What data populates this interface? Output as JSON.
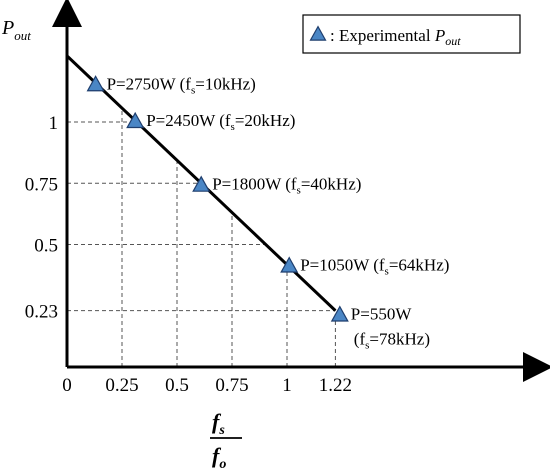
{
  "chart_data": {
    "type": "line",
    "ylabel": {
      "base": "P",
      "sub": "out"
    },
    "xlabel": {
      "num_base": "f",
      "num_sub": "s",
      "den_base": "f",
      "den_sub": "o"
    },
    "x_ticks": [
      {
        "value": 0,
        "label": "0"
      },
      {
        "value": 0.25,
        "label": "0.25"
      },
      {
        "value": 0.5,
        "label": "0.5"
      },
      {
        "value": 0.75,
        "label": "0.75"
      },
      {
        "value": 1,
        "label": "1"
      },
      {
        "value": 1.22,
        "label": "1.22"
      }
    ],
    "y_ticks": [
      {
        "value": 0.23,
        "label": "0.23"
      },
      {
        "value": 0.5,
        "label": "0.5"
      },
      {
        "value": 0.75,
        "label": "0.75"
      },
      {
        "value": 1,
        "label": "1"
      }
    ],
    "xlim": [
      0,
      1.6
    ],
    "ylim": [
      0,
      1.45
    ],
    "line": {
      "x": [
        0,
        1.22
      ],
      "y": [
        1.27,
        0.23
      ]
    },
    "points": [
      {
        "x": 0.13,
        "y": 1.15,
        "label_main": "P=2750W (f",
        "label_sub": "s",
        "label_tail": "=10kHz)"
      },
      {
        "x": 0.31,
        "y": 1.0,
        "label_main": "P=2450W (f",
        "label_sub": "s",
        "label_tail": "=20kHz)"
      },
      {
        "x": 0.61,
        "y": 0.74,
        "label_main": "P=1800W (f",
        "label_sub": "s",
        "label_tail": "=40kHz)"
      },
      {
        "x": 1.01,
        "y": 0.41,
        "label_main": "P=1050W (f",
        "label_sub": "s",
        "label_tail": "=64kHz)"
      },
      {
        "x": 1.24,
        "y": 0.21,
        "label_main": "P=550W",
        "label_sub": "",
        "label_tail": "",
        "label2_main": "(f",
        "label2_sub": "s",
        "label2_tail": "=78kHz)"
      }
    ],
    "legend": {
      "text": ": Experimental",
      "italic_base": "P",
      "italic_sub": "out",
      "position": "top-right"
    },
    "colors": {
      "marker_fill": "#4a86c5",
      "marker_stroke": "#1f3e6d",
      "line": "#000000",
      "axis": "#000000",
      "grid": "#555555"
    }
  }
}
